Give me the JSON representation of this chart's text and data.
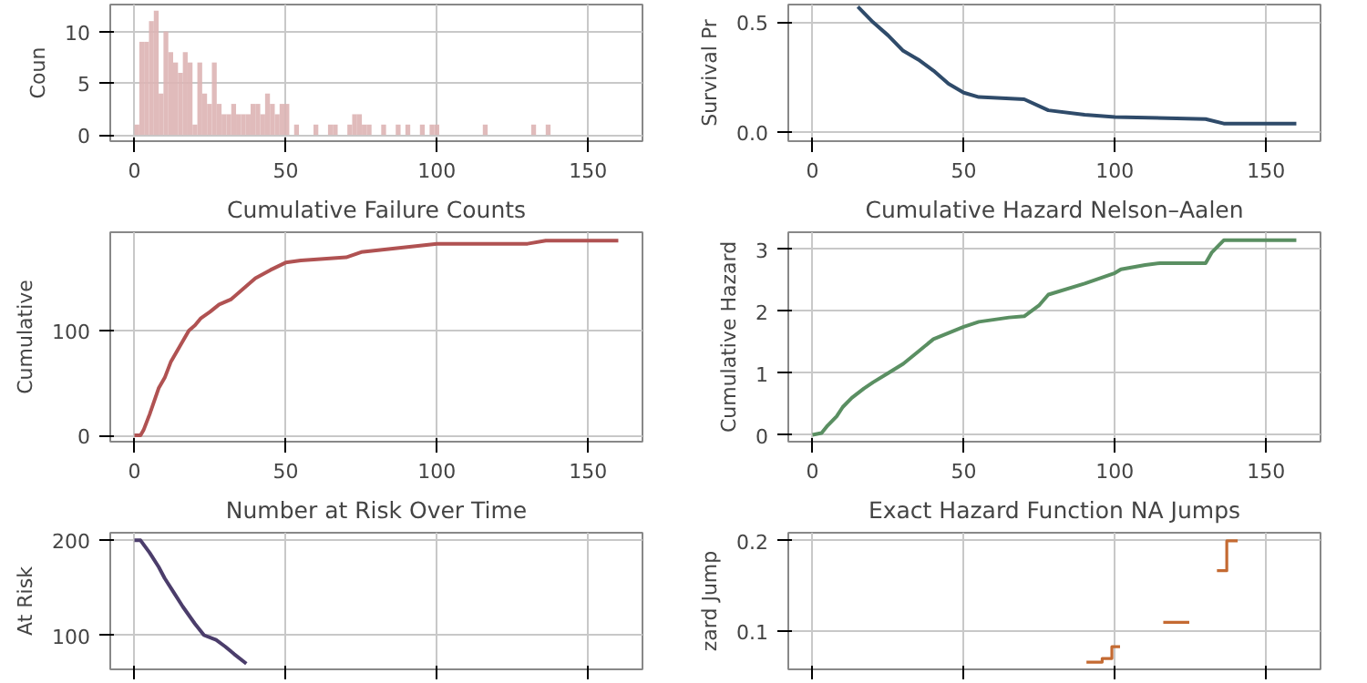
{
  "chart_data": [
    {
      "type": "histogram",
      "ylabel": "Coun",
      "color": "#ddb4b4",
      "grid": true,
      "bins": [
        0,
        1.6,
        3.2,
        4.8,
        6.4,
        8,
        9.6,
        11.2,
        12.8,
        14.4,
        16,
        17.6,
        19.2,
        20.8,
        22.4,
        24,
        25.6,
        27.2,
        28.8,
        30.4,
        32,
        33.6,
        35.2,
        36.8,
        38.4,
        40,
        41.6,
        43.2,
        44.8,
        46.4,
        48,
        49.6,
        51.2,
        52.8,
        54.4,
        56,
        57.6,
        59.2,
        60.8,
        62.4,
        64,
        65.6,
        67.2,
        68.8,
        70.4,
        72,
        73.6,
        75.2,
        76.8,
        78.4,
        80,
        81.6,
        83.2,
        84.8,
        86.4,
        88,
        89.6,
        91.2,
        92.8,
        94.4,
        96,
        97.6,
        99.2,
        100.8,
        102.4,
        104,
        105.6,
        107.2,
        108.8,
        110.4,
        112,
        113.6,
        115.2,
        116.8,
        118.4,
        120,
        121.6,
        123.2,
        124.8,
        126.4,
        128,
        129.6,
        131.2,
        132.8,
        134.4,
        136,
        137.6,
        139.2,
        140.8,
        142.4,
        144,
        145.6,
        147.2,
        148.8,
        150.4,
        152,
        153.6,
        155.2,
        156.8,
        158.4,
        160
      ],
      "values": [
        1,
        9,
        9,
        11,
        12,
        4,
        10,
        8,
        7,
        6,
        8,
        7,
        1,
        7,
        4,
        3,
        7,
        3,
        2,
        2,
        3,
        2,
        2,
        2,
        3,
        3,
        2,
        4,
        3,
        2,
        3,
        3,
        0,
        1,
        0,
        0,
        0,
        1,
        0,
        0,
        1,
        1,
        0,
        0,
        1,
        2,
        2,
        1,
        1,
        0,
        0,
        1,
        0,
        0,
        1,
        0,
        1,
        0,
        0,
        1,
        0,
        1,
        1,
        0,
        0,
        0,
        0,
        0,
        0,
        0,
        0,
        0,
        1,
        0,
        0,
        0,
        0,
        0,
        0,
        0,
        0,
        0,
        1,
        0,
        0,
        1,
        0,
        0,
        0,
        0,
        0,
        0,
        0,
        0,
        0,
        0,
        0,
        0,
        0,
        0
      ],
      "xlim": [
        -8,
        168
      ],
      "ylim": [
        -0.6,
        12.6
      ],
      "xticks": [
        0,
        50,
        100,
        150
      ],
      "yticks": [
        0,
        5,
        10
      ]
    },
    {
      "type": "line",
      "ylabel": "Survival Pr",
      "color": "#2f4b6a",
      "grid": true,
      "x": [
        15,
        20,
        25,
        30,
        35,
        40,
        45,
        50,
        55,
        70,
        78,
        90,
        100,
        130,
        136,
        160
      ],
      "values": [
        0.57,
        0.5,
        0.44,
        0.37,
        0.33,
        0.28,
        0.22,
        0.18,
        0.16,
        0.15,
        0.1,
        0.08,
        0.07,
        0.06,
        0.04,
        0.04
      ],
      "xlim": [
        -8,
        168
      ],
      "ylim": [
        -0.04,
        0.58
      ],
      "xticks": [
        0,
        50,
        100,
        150
      ],
      "yticks": [
        {
          "value": 0,
          "label": "0.0"
        },
        0.5
      ]
    },
    {
      "type": "line",
      "title": "Cumulative Failure Counts",
      "ylabel": "Cumulative",
      "color": "#b05252",
      "grid": true,
      "x": [
        0,
        2,
        3,
        5,
        8,
        10,
        12,
        15,
        18,
        20,
        22,
        25,
        28,
        32,
        36,
        40,
        45,
        50,
        55,
        70,
        75,
        100,
        130,
        136,
        160
      ],
      "values": [
        0,
        0,
        5,
        20,
        45,
        55,
        70,
        85,
        100,
        105,
        112,
        118,
        125,
        130,
        140,
        150,
        158,
        165,
        167,
        170,
        175,
        183,
        183,
        186,
        186
      ],
      "xlim": [
        -8,
        168
      ],
      "ylim": [
        -6,
        194
      ],
      "xticks": [
        0,
        50,
        100,
        150
      ],
      "yticks": [
        0,
        100
      ]
    },
    {
      "type": "line",
      "title": "Cumulative Hazard Nelson–Aalen",
      "ylabel": "Cumulative Hazard",
      "color": "#5a8f62",
      "grid": true,
      "x": [
        0,
        3,
        5,
        8,
        10,
        13,
        17,
        20,
        25,
        30,
        35,
        40,
        50,
        55,
        65,
        70,
        75,
        78,
        90,
        100,
        102,
        110,
        115,
        130,
        132,
        136,
        160
      ],
      "values": [
        0,
        0.03,
        0.15,
        0.3,
        0.45,
        0.6,
        0.75,
        0.85,
        1.0,
        1.15,
        1.35,
        1.55,
        1.75,
        1.83,
        1.9,
        1.92,
        2.1,
        2.27,
        2.45,
        2.62,
        2.68,
        2.75,
        2.78,
        2.78,
        2.95,
        3.15,
        3.15
      ],
      "xlim": [
        -8,
        168
      ],
      "ylim": [
        -0.11,
        3.28
      ],
      "xticks": [
        0,
        50,
        100,
        150
      ],
      "yticks": [
        0,
        1,
        2,
        3
      ]
    },
    {
      "type": "line",
      "title": "Number at Risk Over Time",
      "ylabel": "At Risk",
      "color": "#4b3d6b",
      "grid": true,
      "tick_labels": "y",
      "x": [
        0,
        2,
        5,
        8,
        10,
        13,
        16,
        20,
        23,
        27,
        30,
        33,
        37
      ],
      "values": [
        200,
        200,
        187,
        172,
        160,
        145,
        130,
        112,
        100,
        95,
        88,
        80,
        70
      ],
      "xlim": [
        -8,
        168
      ],
      "ylim": [
        64,
        208
      ],
      "xticks": [
        0,
        50,
        100,
        150
      ],
      "yticks": [
        100,
        200
      ]
    },
    {
      "type": "step",
      "title": "Exact Hazard Function NA Jumps",
      "ylabel": "zard Jump",
      "color": "#c46a32",
      "grid": true,
      "tick_labels": "y",
      "x": [
        90.6,
        95.8,
        99,
        101.7,
        116,
        124.6,
        133.75,
        137,
        140.6
      ],
      "values": [
        0.066,
        0.07,
        0.083,
        null,
        0.11,
        null,
        0.167,
        0.2,
        0.2
      ],
      "xlim": [
        -8,
        168
      ],
      "ylim": [
        0.058,
        0.209
      ],
      "xticks": [
        0,
        50,
        100,
        150
      ],
      "yticks": [
        0.1,
        0.2
      ]
    }
  ]
}
